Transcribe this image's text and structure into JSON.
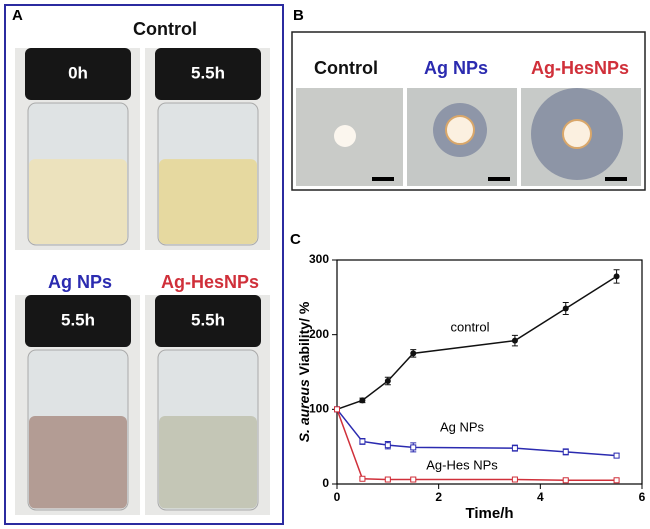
{
  "panel_a": {
    "label": "A",
    "groups": [
      {
        "name": "Control",
        "vials": [
          "0h",
          "5.5h"
        ]
      },
      {
        "name": "Ag NPs",
        "vials": [
          "5.5h"
        ]
      },
      {
        "name": "Ag-HesNPs",
        "vials": [
          "5.5h"
        ]
      }
    ]
  },
  "panel_b": {
    "label": "B",
    "plates": [
      "Control",
      "Ag NPs",
      "Ag-HesNPs"
    ]
  },
  "chart_data": {
    "type": "line",
    "label": "C",
    "xlabel": "Time/h",
    "ylabel": [
      "S. aureus",
      " Viability/ %"
    ],
    "x": [
      0,
      0.5,
      1,
      1.5,
      3.5,
      4.5,
      5.5
    ],
    "xlim": [
      0,
      6
    ],
    "xticks": [
      0,
      2,
      4,
      6
    ],
    "ylim": [
      0,
      300
    ],
    "yticks": [
      0,
      100,
      200,
      300
    ],
    "series": [
      {
        "name": "control",
        "color": "#111111",
        "values": [
          100,
          112,
          138,
          175,
          192,
          235,
          278
        ],
        "errors": [
          2,
          3,
          5,
          5,
          7,
          8,
          9
        ]
      },
      {
        "name": "Ag NPs",
        "color": "#2b2bb0",
        "values": [
          100,
          57,
          52,
          49,
          48,
          43,
          38
        ],
        "errors": [
          2,
          4,
          5,
          6,
          4,
          4,
          3
        ]
      },
      {
        "name": "Ag-Hes NPs",
        "color": "#d0303a",
        "values": [
          100,
          7,
          6,
          6,
          6,
          5,
          5
        ],
        "errors": [
          2,
          2,
          2,
          2,
          2,
          2,
          2
        ]
      }
    ]
  }
}
